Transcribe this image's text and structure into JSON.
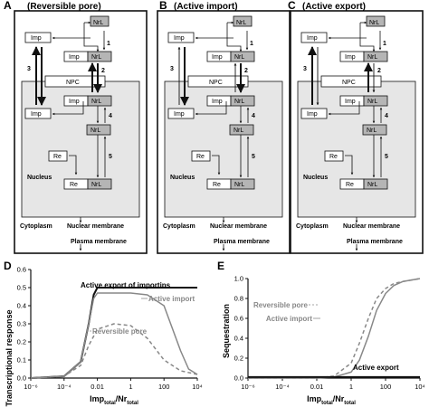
{
  "panels": {
    "A": {
      "letter": "A",
      "title": "(Reversible pore)"
    },
    "B": {
      "letter": "B",
      "title": "(Active import)"
    },
    "C": {
      "letter": "C",
      "title": "(Active export)"
    }
  },
  "diagram_labels": {
    "imp": "Imp",
    "nrl": "NrL",
    "re": "Re",
    "npc": "NPC",
    "nucleus": "Nucleus",
    "cytoplasm": "Cytoplasm",
    "nuclear_membrane": "Nuclear membrane",
    "plasma_membrane": "Plasma membrane",
    "step1": "1",
    "step2": "2",
    "step3": "3",
    "step4": "4",
    "step5": "5"
  },
  "chart_data": [
    {
      "panel": "D",
      "type": "line",
      "ylabel": "Transcriptional response",
      "xlabel_main": "Imp",
      "xlabel_sub1": "total",
      "xlabel_mid": "/Nr",
      "xlabel_sub2": "total",
      "xscale": "log",
      "xlim": [
        1e-06,
        10000
      ],
      "ylim": [
        0,
        0.6
      ],
      "xticks": [
        "10⁻⁶",
        "10⁻⁴",
        "0.01",
        "1",
        "100",
        "10⁴"
      ],
      "yticks": [
        "0.0",
        "0.1",
        "0.2",
        "0.3",
        "0.4",
        "0.5",
        "0.6"
      ],
      "annotations": [
        "Active export of importins",
        "Active import",
        "Reversible pore"
      ],
      "series": [
        {
          "name": "Active export of importins",
          "color": "#111111",
          "style": "solid",
          "x": [
            1e-06,
            0.0001,
            0.001,
            0.003,
            0.006,
            0.01,
            0.1,
            1,
            100,
            10000
          ],
          "y": [
            0.0,
            0.01,
            0.09,
            0.3,
            0.46,
            0.5,
            0.5,
            0.5,
            0.5,
            0.5
          ]
        },
        {
          "name": "Active import",
          "color": "#888888",
          "style": "solid",
          "x": [
            1e-06,
            0.0001,
            0.001,
            0.003,
            0.006,
            0.01,
            0.1,
            1,
            10,
            100,
            1000,
            3000,
            10000
          ],
          "y": [
            0.0,
            0.01,
            0.09,
            0.3,
            0.44,
            0.47,
            0.47,
            0.47,
            0.46,
            0.4,
            0.15,
            0.05,
            0.02
          ]
        },
        {
          "name": "Reversible pore",
          "color": "#888888",
          "style": "dashed",
          "x": [
            1e-06,
            0.0001,
            0.001,
            0.003,
            0.01,
            0.1,
            1,
            10,
            100,
            1000,
            10000
          ],
          "y": [
            0.0,
            0.01,
            0.07,
            0.18,
            0.27,
            0.3,
            0.29,
            0.22,
            0.1,
            0.04,
            0.02
          ]
        }
      ]
    },
    {
      "panel": "E",
      "type": "line",
      "ylabel": "Sequestration",
      "xlabel_main": "Imp",
      "xlabel_sub1": "total",
      "xlabel_mid": "/Nr",
      "xlabel_sub2": "total",
      "xscale": "log",
      "xlim": [
        1e-06,
        10000
      ],
      "ylim": [
        0,
        1.0
      ],
      "xticks": [
        "10⁻⁶",
        "10⁻⁴",
        "0.01",
        "1",
        "100",
        "10⁴"
      ],
      "yticks": [
        "0.0",
        "0.2",
        "0.4",
        "0.6",
        "0.8",
        "1.0"
      ],
      "annotations": [
        "Reversible pore",
        "Active import",
        "Active export"
      ],
      "series": [
        {
          "name": "Reversible pore",
          "color": "#888888",
          "style": "dashed",
          "x": [
            1e-06,
            0.01,
            0.1,
            1,
            3,
            10,
            30,
            100,
            300,
            1000,
            10000
          ],
          "y": [
            0.0,
            0.0,
            0.02,
            0.15,
            0.35,
            0.6,
            0.8,
            0.9,
            0.95,
            0.97,
            1.0
          ]
        },
        {
          "name": "Active import",
          "color": "#888888",
          "style": "solid",
          "x": [
            1e-06,
            0.01,
            0.1,
            1,
            3,
            10,
            30,
            100,
            300,
            1000,
            10000
          ],
          "y": [
            0.0,
            0.0,
            0.01,
            0.06,
            0.18,
            0.42,
            0.68,
            0.85,
            0.93,
            0.97,
            1.0
          ]
        },
        {
          "name": "Active export",
          "color": "#111111",
          "style": "solid",
          "x": [
            1e-06,
            10000
          ],
          "y": [
            0.01,
            0.01
          ]
        }
      ]
    }
  ]
}
